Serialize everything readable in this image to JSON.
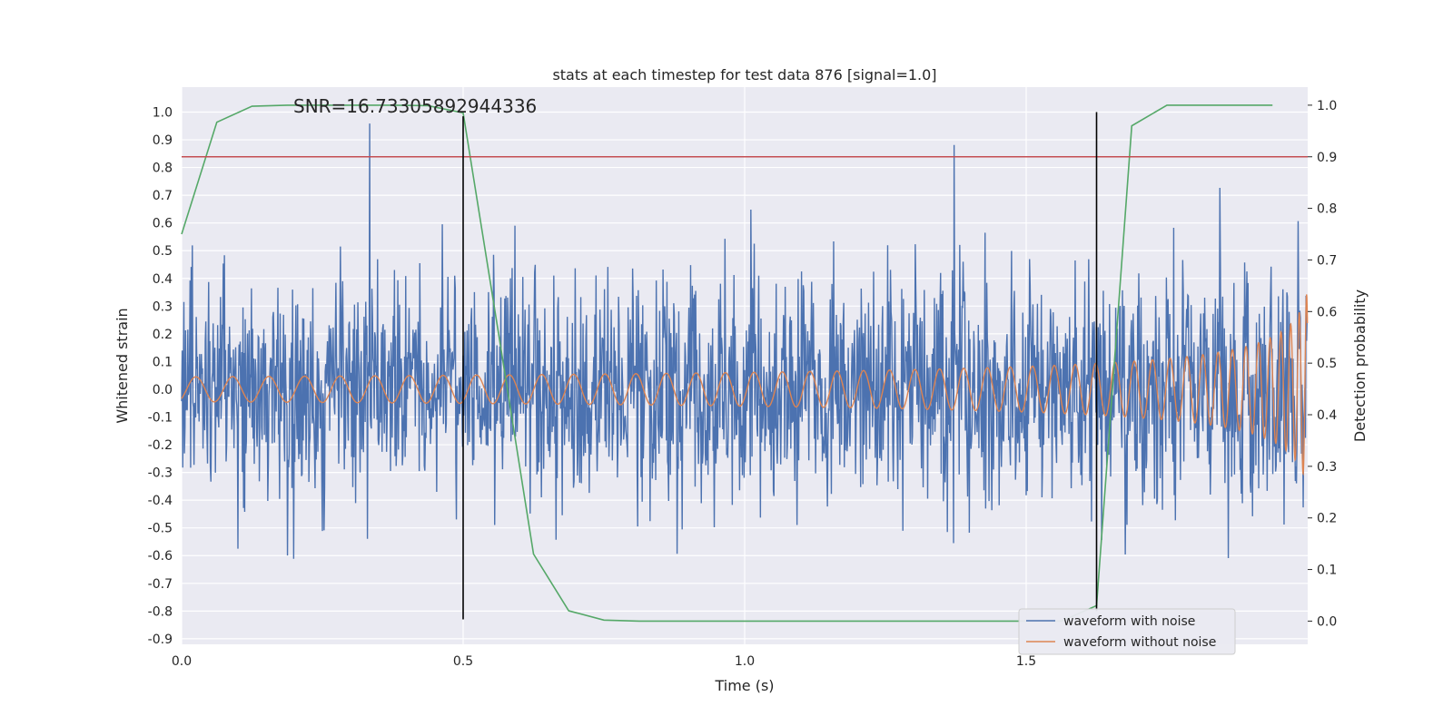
{
  "chart_data": {
    "type": "line",
    "title": "stats at each timestep for test data 876 [signal=1.0]",
    "annotation": "SNR=16.73305892944336",
    "xlabel": "Time (s)",
    "ylabel_left": "Whitened strain",
    "ylabel_right": "Detection probability",
    "xlim": [
      0.0,
      2.0
    ],
    "ylim_left": [
      -0.92,
      1.09
    ],
    "ylim_right": [
      -0.045,
      1.035
    ],
    "x_ticks": [
      "0.0",
      "0.5",
      "1.0",
      "1.5"
    ],
    "y_ticks_left": [
      "-0.9",
      "-0.8",
      "-0.7",
      "-0.6",
      "-0.5",
      "-0.4",
      "-0.3",
      "-0.2",
      "-0.1",
      "0.0",
      "0.1",
      "0.2",
      "0.3",
      "0.4",
      "0.5",
      "0.6",
      "0.7",
      "0.8",
      "0.9",
      "1.0"
    ],
    "y_ticks_right": [
      "0.0",
      "0.1",
      "0.2",
      "0.3",
      "0.4",
      "0.5",
      "0.6",
      "0.7",
      "0.8",
      "0.9",
      "1.0"
    ],
    "grid": true,
    "legend_position": "lower-right",
    "series": [
      {
        "name": "waveform with noise",
        "axis": "left",
        "color": "#4c72b0",
        "description_kind": "noisy strain, roughly uniform noise band about ±0.5 with peaks near 1.0 and -0.83"
      },
      {
        "name": "waveform without noise",
        "axis": "left",
        "color": "#dd8452",
        "description_kind": "chirp signal, amplitude growing from 0.05 to 0.45 with increasing frequency"
      },
      {
        "axis": "right",
        "color": "#55a868",
        "x": [
          0.0,
          0.0625,
          0.125,
          0.1875,
          0.25,
          0.3125,
          0.375,
          0.4375,
          0.5,
          0.5625,
          0.625,
          0.6875,
          0.75,
          0.8125,
          0.875,
          0.9375,
          1.0,
          1.0625,
          1.125,
          1.1875,
          1.25,
          1.3125,
          1.375,
          1.4375,
          1.5,
          1.5625,
          1.625,
          1.6875,
          1.75,
          1.8125,
          1.875,
          1.9375
        ],
        "values": [
          0.75,
          0.967,
          0.998,
          1.0,
          1.0,
          1.0,
          1.0,
          0.999,
          0.985,
          0.56,
          0.13,
          0.02,
          0.002,
          0.0,
          0.0,
          0.0,
          0.0,
          0.0,
          0.0,
          0.0,
          0.0,
          0.0,
          0.0,
          0.0,
          0.0,
          0.0,
          0.03,
          0.96,
          1.0,
          1.0,
          1.0,
          1.0
        ]
      }
    ],
    "threshold_line": {
      "axis": "right",
      "value": 0.9,
      "color": "#c44e52"
    },
    "vertical_lines": [
      {
        "x": 0.5,
        "y_from": -0.83,
        "y_to": 0.985,
        "color": "#000000"
      },
      {
        "x": 1.625,
        "y_from": -0.8,
        "y_to": 1.0,
        "color": "#000000"
      }
    ]
  }
}
